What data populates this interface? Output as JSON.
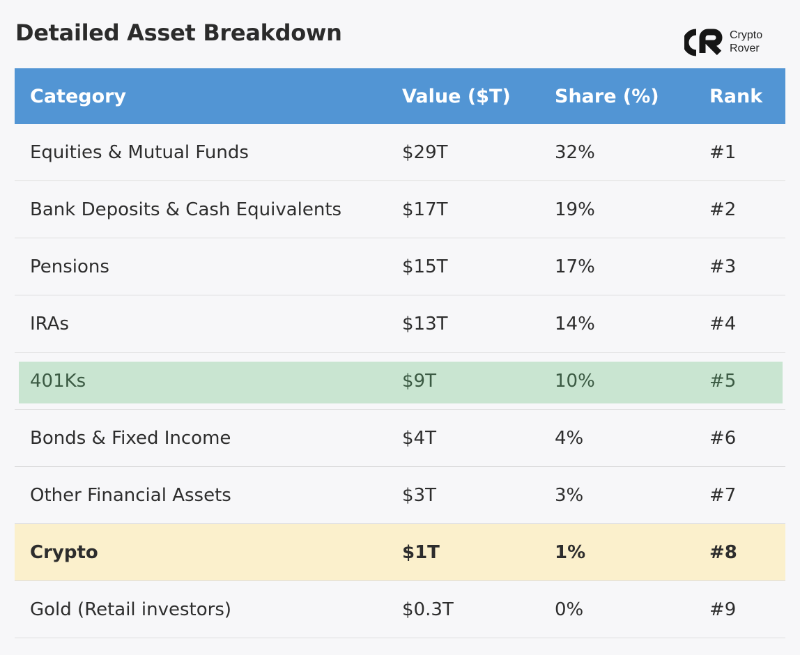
{
  "title": "Detailed Asset Breakdown",
  "logo": {
    "line1": "Crypto",
    "line2": "Rover"
  },
  "table": {
    "headers": {
      "category": "Category",
      "value": "Value ($T)",
      "share": "Share (%)",
      "rank": "Rank"
    },
    "rows": [
      {
        "category": "Equities & Mutual Funds",
        "value": "$29T",
        "share": "32%",
        "rank": "#1"
      },
      {
        "category": "Bank Deposits & Cash Equivalents",
        "value": "$17T",
        "share": "19%",
        "rank": "#2"
      },
      {
        "category": "Pensions",
        "value": "$15T",
        "share": "17%",
        "rank": "#3"
      },
      {
        "category": "IRAs",
        "value": "$13T",
        "share": "14%",
        "rank": "#4"
      },
      {
        "category": "401Ks",
        "value": "$9T",
        "share": "10%",
        "rank": "#5"
      },
      {
        "category": "Bonds & Fixed Income",
        "value": "$4T",
        "share": "4%",
        "rank": "#6"
      },
      {
        "category": "Other Financial Assets",
        "value": "$3T",
        "share": "3%",
        "rank": "#7"
      },
      {
        "category": "Crypto",
        "value": "$1T",
        "share": "1%",
        "rank": "#8"
      },
      {
        "category": "Gold (Retail investors)",
        "value": "$0.3T",
        "share": "0%",
        "rank": "#9"
      }
    ]
  },
  "colors": {
    "header_bg": "#5295d4",
    "highlight_green": "#c9e5d1",
    "highlight_yellow": "#fbf0cc"
  }
}
